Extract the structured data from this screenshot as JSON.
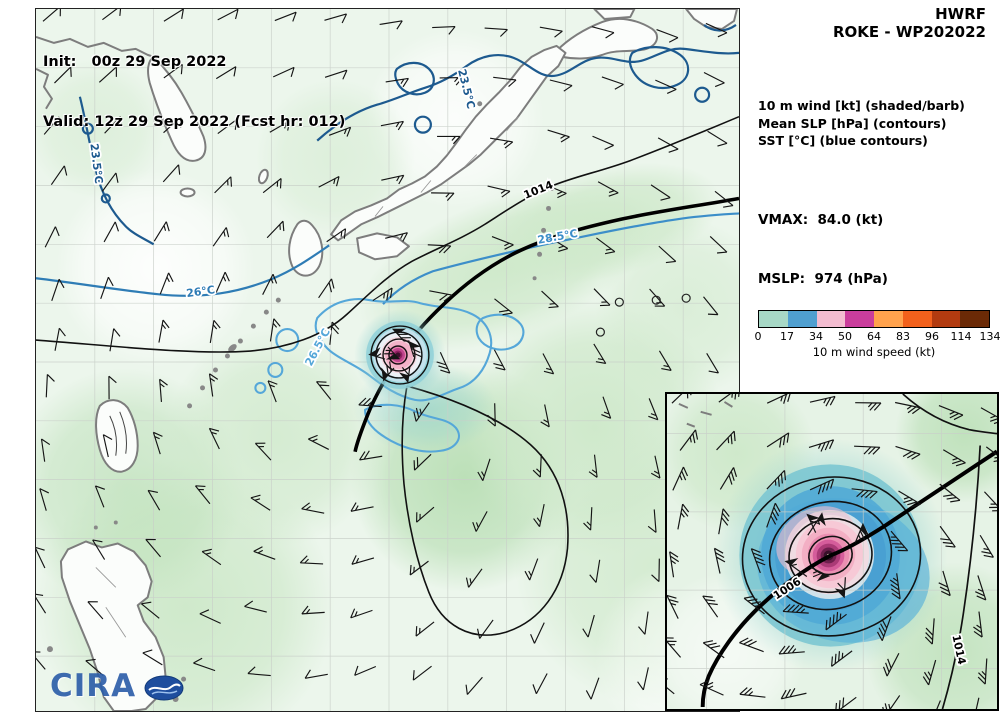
{
  "header": {
    "model": "HWRF",
    "storm": "ROKE - WP202022"
  },
  "map": {
    "init_label": "Init:   00z 29 Sep 2022",
    "valid_label": "Valid: 12z 29 Sep 2022 (Fcst hr: 012)",
    "contour_labels": {
      "slp_1014": "1014",
      "sst_sea_of_japan": "23.5°C",
      "sst_yellow_sea": "23.5°C",
      "sst_east_china_sea": "26°C",
      "sst_south_of_honshu": "28.5°C",
      "sst_near_storm": "26.5°C"
    },
    "logo_text": "CIRA"
  },
  "legend": {
    "lines": [
      "10 m wind [kt] (shaded/barb)",
      "Mean SLP [hPa] (contours)",
      "SST [°C] (blue contours)"
    ]
  },
  "stats": {
    "vmax": "VMAX:  84.0 (kt)",
    "mslp": "MSLP:  974 (hPa)"
  },
  "colorbar": {
    "ticks": [
      "0",
      "17",
      "34",
      "50",
      "64",
      "83",
      "96",
      "114",
      "134"
    ],
    "label": "10 m wind speed (kt)",
    "colors": [
      "#a7d8c6",
      "#4f9fd0",
      "#f3bcd0",
      "#ca3d9c",
      "#ffa24d",
      "#f2611c",
      "#b23b10",
      "#6b2a06"
    ]
  },
  "inset": {
    "contour_labels": {
      "slp_1006": "1006",
      "slp_1014": "1014"
    }
  }
}
